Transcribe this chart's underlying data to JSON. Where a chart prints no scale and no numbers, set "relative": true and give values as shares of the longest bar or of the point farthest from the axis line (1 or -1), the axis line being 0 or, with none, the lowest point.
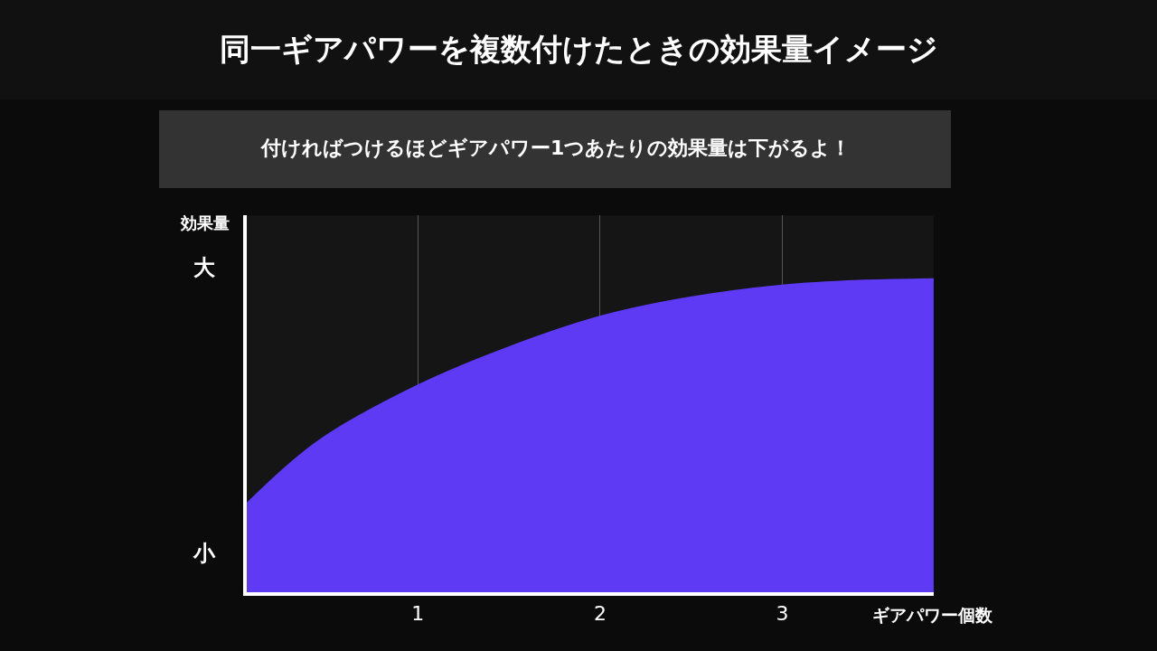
{
  "chart_data": {
    "type": "area",
    "title": "同一ギアパワーを複数付けたときの効果量イメージ",
    "subtitle": "付ければつけるほどギアパワー1つあたりの効果量は下がるよ！",
    "xlabel": "ギアパワー個数",
    "ylabel": "効果量",
    "annotations": [
      "大",
      "小"
    ],
    "relative": true,
    "x": [
      0.06,
      0.45,
      1,
      1.49,
      2,
      2.48,
      3,
      3.42,
      3.83
    ],
    "series": [
      {
        "color": "#5e3af5",
        "values": [
          0.28,
          0.48,
          0.66,
          0.78,
          0.88,
          0.94,
          0.98,
          0.995,
          1
        ]
      }
    ],
    "xlim": [
      0.06,
      3.83
    ],
    "xticks": [
      1,
      2,
      3
    ],
    "grid": "x",
    "line_style": "solid",
    "marker": "none"
  }
}
